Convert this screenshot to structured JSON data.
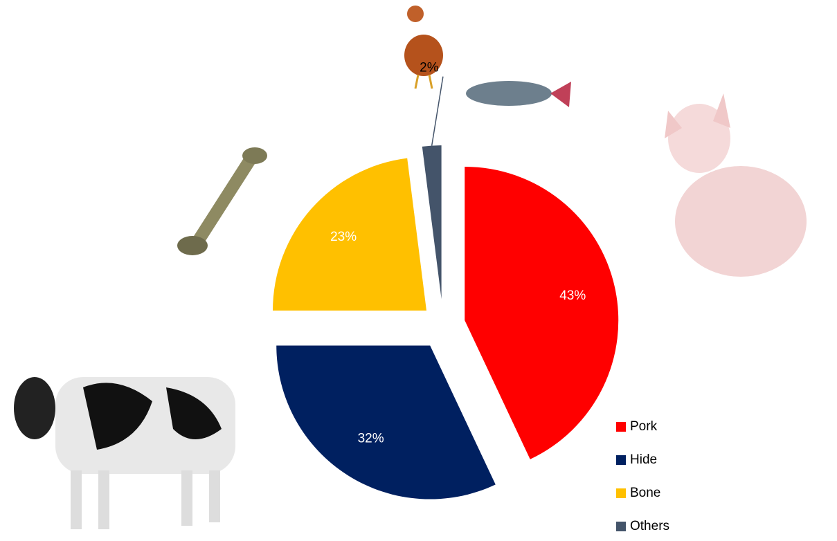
{
  "chart_data": {
    "type": "pie",
    "categories": [
      "Pork",
      "Hide",
      "Bone",
      "Others"
    ],
    "values": [
      43,
      32,
      23,
      2
    ],
    "value_labels": [
      "43%",
      "32%",
      "23%",
      "2%"
    ],
    "colors": [
      "#ff0000",
      "#002060",
      "#ffc000",
      "#44546a"
    ],
    "legend": "bottom-right"
  }
}
